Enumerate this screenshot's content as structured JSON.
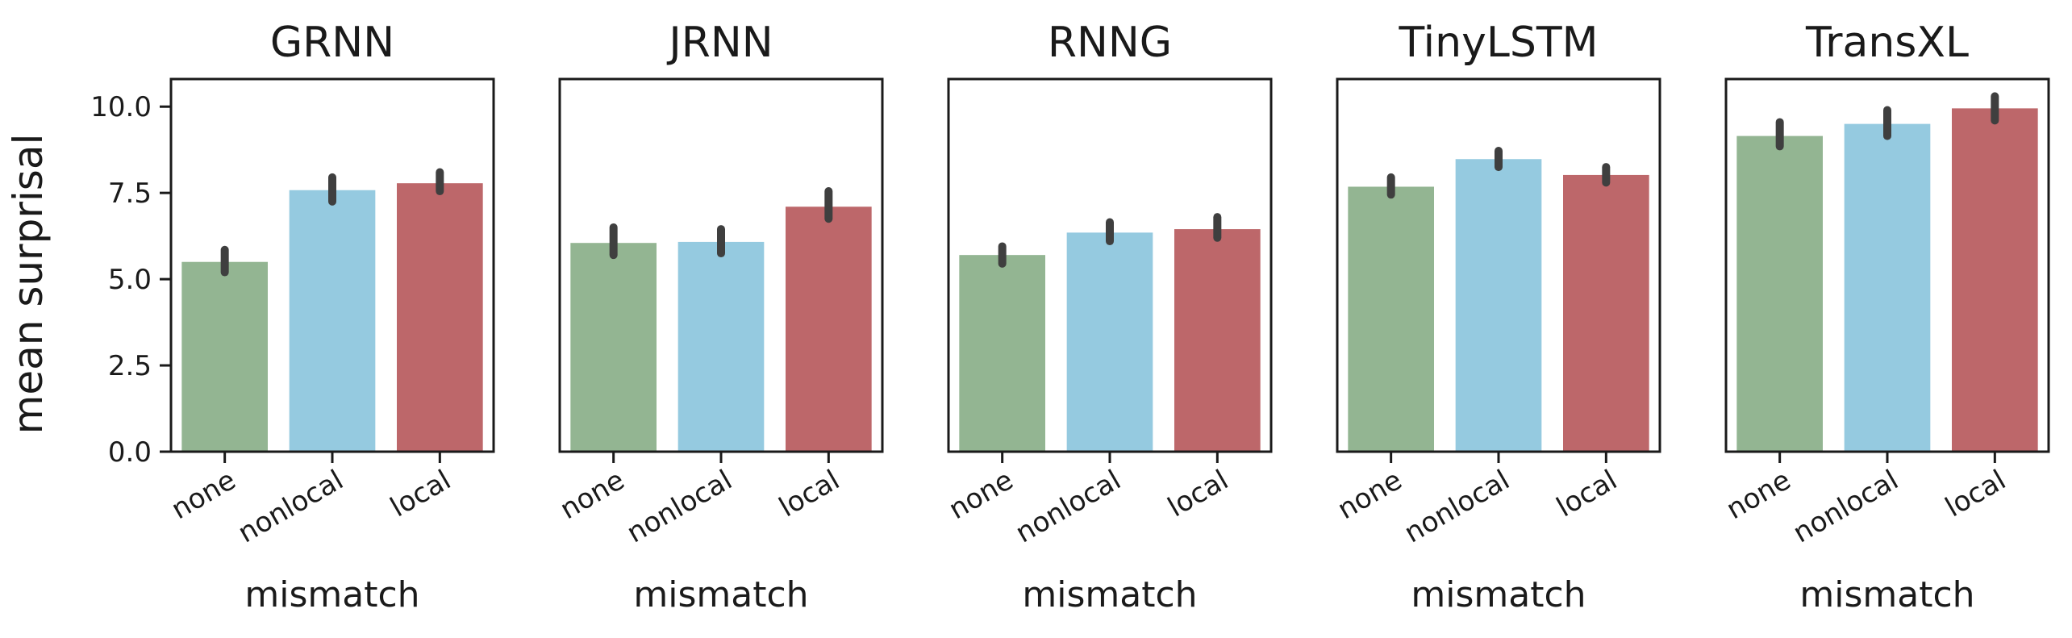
{
  "chart_data": {
    "type": "bar",
    "ylabel": "mean surprisal",
    "xlabel": "mismatch",
    "categories": [
      "none",
      "nonlocal",
      "local"
    ],
    "colors": [
      "#93b592",
      "#95cae0",
      "#bd676a"
    ],
    "ylim": [
      0,
      10.8
    ],
    "yticks": [
      0.0,
      2.5,
      5.0,
      7.5,
      10.0
    ],
    "ytick_labels": [
      "0.0",
      "2.5",
      "5.0",
      "7.5",
      "10.0"
    ],
    "shared_y": true,
    "grid": false,
    "panels": [
      {
        "title": "GRNN",
        "values": [
          5.5,
          7.58,
          7.78
        ],
        "errors": [
          [
            5.2,
            5.85
          ],
          [
            7.25,
            7.95
          ],
          [
            7.55,
            8.1
          ]
        ]
      },
      {
        "title": "JRNN",
        "values": [
          6.05,
          6.08,
          7.1
        ],
        "errors": [
          [
            5.7,
            6.5
          ],
          [
            5.75,
            6.45
          ],
          [
            6.75,
            7.55
          ]
        ]
      },
      {
        "title": "RNNG",
        "values": [
          5.7,
          6.35,
          6.45
        ],
        "errors": [
          [
            5.45,
            5.95
          ],
          [
            6.1,
            6.65
          ],
          [
            6.2,
            6.8
          ]
        ]
      },
      {
        "title": "TinyLSTM",
        "values": [
          7.68,
          8.48,
          8.02
        ],
        "errors": [
          [
            7.45,
            7.95
          ],
          [
            8.25,
            8.72
          ],
          [
            7.8,
            8.25
          ]
        ]
      },
      {
        "title": "TransXL",
        "values": [
          9.15,
          9.5,
          9.95
        ],
        "errors": [
          [
            8.85,
            9.55
          ],
          [
            9.15,
            9.9
          ],
          [
            9.6,
            10.3
          ]
        ]
      }
    ]
  }
}
